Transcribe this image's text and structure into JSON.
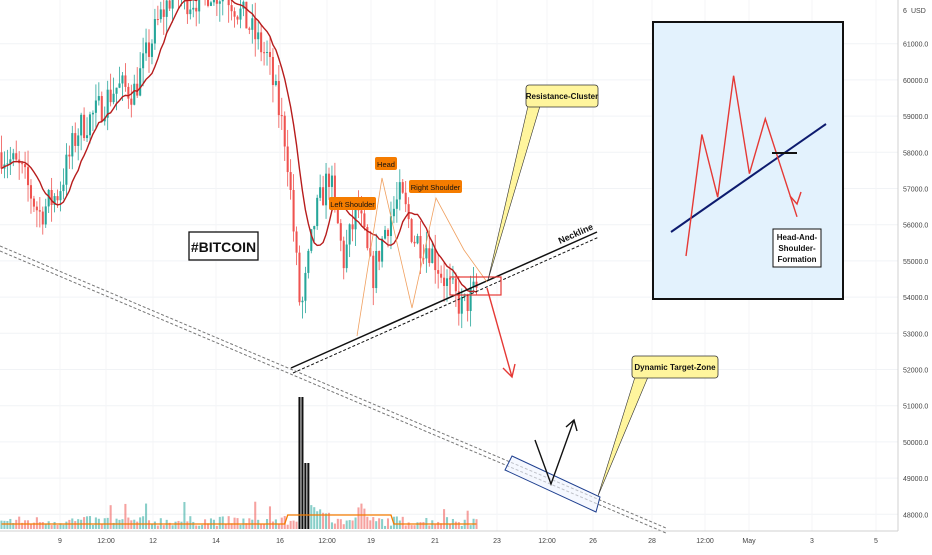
{
  "chart_data": {
    "type": "candlestick",
    "price_axis": {
      "unit_label": "USD",
      "top_partial_label": "6",
      "tick_labels": [
        "61000.0",
        "60000.0",
        "59000.0",
        "58000.0",
        "57000.0",
        "56000.0",
        "55000.0",
        "54000.0",
        "53000.0",
        "52000.0",
        "51000.0",
        "50000.0",
        "49000.0",
        "48000.0"
      ],
      "range": [
        47900,
        62300
      ]
    },
    "time_axis": {
      "tick_labels": [
        "9",
        "12:00",
        "12",
        "14",
        "16",
        "12:00",
        "19",
        "21",
        "23",
        "12:00",
        "26",
        "28",
        "12:00",
        "May",
        "3",
        "5"
      ]
    },
    "price_path": [
      {
        "t": 0,
        "price": 58000
      },
      {
        "t": 0.04,
        "price": 57500
      },
      {
        "t": 0.08,
        "price": 56300
      },
      {
        "t": 0.12,
        "price": 56900
      },
      {
        "t": 0.16,
        "price": 58600
      },
      {
        "t": 0.2,
        "price": 59100
      },
      {
        "t": 0.24,
        "price": 59800
      },
      {
        "t": 0.28,
        "price": 59700
      },
      {
        "t": 0.33,
        "price": 61600
      },
      {
        "t": 0.36,
        "price": 62400
      },
      {
        "t": 0.4,
        "price": 62200
      },
      {
        "t": 0.44,
        "price": 62500
      },
      {
        "t": 0.48,
        "price": 62300
      },
      {
        "t": 0.52,
        "price": 61500
      },
      {
        "t": 0.56,
        "price": 60600
      },
      {
        "t": 0.6,
        "price": 58200
      },
      {
        "t": 0.63,
        "price": 53500
      },
      {
        "t": 0.66,
        "price": 56200
      },
      {
        "t": 0.69,
        "price": 57400
      },
      {
        "t": 0.72,
        "price": 55000
      },
      {
        "t": 0.75,
        "price": 56500
      },
      {
        "t": 0.78,
        "price": 54500
      },
      {
        "t": 0.81,
        "price": 56000
      },
      {
        "t": 0.84,
        "price": 56800
      },
      {
        "t": 0.87,
        "price": 55600
      },
      {
        "t": 0.9,
        "price": 55400
      },
      {
        "t": 0.94,
        "price": 54300
      },
      {
        "t": 0.97,
        "price": 53700
      },
      {
        "t": 1,
        "price": 54200
      }
    ],
    "volume_spike_t": 0.63,
    "title_box": "#BITCOIN",
    "pattern_labels": {
      "left_shoulder": "Left Shoulder",
      "head": "Head",
      "right_shoulder": "Right Shoulder",
      "neckline": "Neckline"
    },
    "callouts": {
      "resistance": "Resistance-Cluster",
      "target": "Dynamic Target-Zone"
    },
    "inset": {
      "lines": [
        "Head-And-",
        "Shoulder-",
        "Formation"
      ],
      "line_values": [
        0.0,
        0.62,
        0.3,
        0.92,
        0.42,
        0.7,
        0.45,
        0.2
      ]
    },
    "colors": {
      "up": "#26a69a",
      "down": "#ef5350",
      "moving_average": "#b71c1c",
      "volume_average": "#f57c00",
      "label_fill": "#f57c00",
      "inset_background": "#e3f2fd",
      "inset_trend": "#0d1b6e",
      "callout_fill": "#fff59d"
    }
  }
}
